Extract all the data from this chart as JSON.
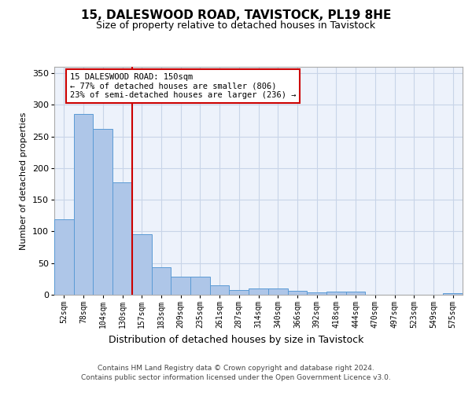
{
  "title": "15, DALESWOOD ROAD, TAVISTOCK, PL19 8HE",
  "subtitle": "Size of property relative to detached houses in Tavistock",
  "xlabel": "Distribution of detached houses by size in Tavistock",
  "ylabel": "Number of detached properties",
  "footer_line1": "Contains HM Land Registry data © Crown copyright and database right 2024.",
  "footer_line2": "Contains public sector information licensed under the Open Government Licence v3.0.",
  "bar_labels": [
    "52sqm",
    "78sqm",
    "104sqm",
    "130sqm",
    "157sqm",
    "183sqm",
    "209sqm",
    "235sqm",
    "261sqm",
    "287sqm",
    "314sqm",
    "340sqm",
    "366sqm",
    "392sqm",
    "418sqm",
    "444sqm",
    "470sqm",
    "497sqm",
    "523sqm",
    "549sqm",
    "575sqm"
  ],
  "bar_values": [
    119,
    285,
    262,
    178,
    95,
    44,
    28,
    28,
    15,
    7,
    10,
    10,
    6,
    4,
    5,
    5,
    0,
    0,
    0,
    0,
    3
  ],
  "bar_color": "#aec6e8",
  "bar_edgecolor": "#5b9bd5",
  "grid_color": "#c8d4e8",
  "bg_color": "#edf2fb",
  "vline_x": 3.5,
  "annotation_text": "15 DALESWOOD ROAD: 150sqm\n← 77% of detached houses are smaller (806)\n23% of semi-detached houses are larger (236) →",
  "annotation_box_color": "#ffffff",
  "annotation_box_edgecolor": "#cc0000",
  "vline_color": "#cc0000",
  "ylim": [
    0,
    360
  ],
  "yticks": [
    0,
    50,
    100,
    150,
    200,
    250,
    300,
    350
  ]
}
